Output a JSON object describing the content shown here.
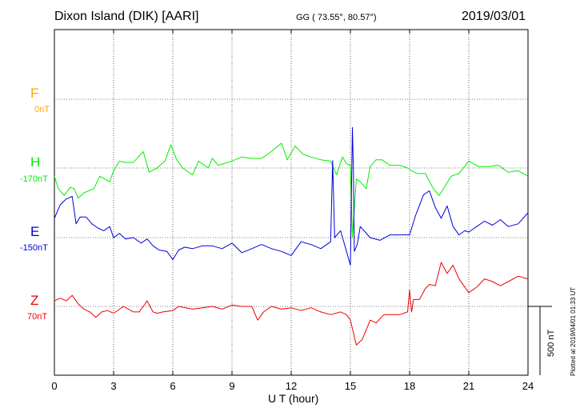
{
  "header": {
    "station": "Dixon Island (DIK)  [AARI]",
    "coords": "GG ( 73.55°,  80.57°)",
    "date": "2019/03/01"
  },
  "footer": {
    "xlabel": "U T (hour)",
    "plotted": "Plotted at 2019/04/01 01:33 UT"
  },
  "scale_bar": {
    "label": "500 nT",
    "value_nT": 500
  },
  "colors": {
    "F": "#ffa500",
    "H": "#00ee00",
    "E": "#0000dd",
    "Z": "#ee0000"
  },
  "channels": [
    {
      "key": "F",
      "name": "F",
      "base": "0nT",
      "color": "#ffa500"
    },
    {
      "key": "H",
      "name": "H",
      "base": "-170nT",
      "color": "#00ee00"
    },
    {
      "key": "E",
      "name": "E",
      "base": "-150nT",
      "color": "#0000dd"
    },
    {
      "key": "Z",
      "name": "Z",
      "base": "70nT",
      "color": "#ee0000"
    }
  ],
  "chart_data": {
    "type": "line",
    "title": "Dixon Island (DIK)  [AARI]",
    "xlabel": "U T (hour)",
    "xlim": [
      0,
      24
    ],
    "x_ticks": [
      0,
      3,
      6,
      9,
      12,
      15,
      18,
      21,
      24
    ],
    "ylabel": "",
    "units": "nT",
    "grid": true,
    "series": [
      {
        "name": "H",
        "color": "#00ee00",
        "baseline_nT": -170,
        "x": [
          0,
          0.2,
          0.5,
          0.8,
          1.0,
          1.2,
          1.5,
          2.0,
          2.3,
          2.8,
          3.0,
          3.3,
          3.6,
          4.0,
          4.5,
          4.8,
          5.2,
          5.6,
          5.9,
          6.2,
          6.5,
          7.0,
          7.3,
          7.8,
          8.0,
          8.3,
          9.0,
          9.5,
          10.0,
          10.5,
          11.0,
          11.5,
          11.8,
          12.2,
          12.6,
          13.0,
          13.5,
          14.0,
          14.3,
          14.6,
          14.8,
          15.0,
          15.1,
          15.2,
          15.3,
          15.5,
          15.8,
          16.0,
          16.3,
          16.6,
          17.0,
          17.5,
          17.9,
          18.1,
          18.4,
          18.8,
          19.2,
          19.5,
          19.8,
          20.1,
          20.5,
          21.0,
          21.5,
          22.0,
          22.5,
          23.0,
          23.5,
          24.0
        ],
        "y": [
          -60,
          -150,
          -200,
          -140,
          -150,
          -220,
          -180,
          -150,
          -60,
          -100,
          -20,
          50,
          40,
          40,
          120,
          -30,
          0,
          50,
          170,
          60,
          0,
          -50,
          50,
          0,
          70,
          20,
          50,
          80,
          70,
          70,
          120,
          180,
          60,
          160,
          100,
          80,
          60,
          50,
          -50,
          80,
          30,
          20,
          -500,
          -300,
          -80,
          -100,
          -150,
          10,
          60,
          60,
          20,
          20,
          0,
          -20,
          -40,
          -40,
          -150,
          -200,
          -130,
          -60,
          -40,
          50,
          10,
          10,
          20,
          -30,
          -20,
          -60
        ]
      },
      {
        "name": "E",
        "color": "#0000dd",
        "baseline_nT": -150,
        "x": [
          0,
          0.3,
          0.6,
          0.9,
          1.1,
          1.3,
          1.6,
          1.9,
          2.2,
          2.5,
          2.8,
          3.0,
          3.3,
          3.6,
          4.0,
          4.4,
          4.7,
          5.0,
          5.3,
          5.7,
          6.0,
          6.3,
          6.6,
          7.0,
          7.5,
          8.0,
          8.5,
          9.0,
          9.5,
          10.0,
          10.5,
          11.0,
          11.5,
          12.0,
          12.5,
          13.0,
          13.5,
          14.0,
          14.1,
          14.2,
          14.5,
          14.8,
          14.9,
          15.0,
          15.1,
          15.15,
          15.2,
          15.35,
          15.5,
          16.0,
          16.5,
          17.0,
          17.5,
          18.0,
          18.3,
          18.7,
          19.0,
          19.3,
          19.6,
          19.9,
          20.2,
          20.5,
          20.8,
          21.0,
          21.4,
          21.8,
          22.2,
          22.6,
          23.0,
          23.5,
          24.0
        ],
        "y": [
          140,
          240,
          280,
          300,
          100,
          150,
          150,
          100,
          70,
          50,
          80,
          0,
          30,
          -10,
          0,
          -40,
          -10,
          -60,
          -90,
          -100,
          -160,
          -90,
          -70,
          -80,
          -60,
          -60,
          -80,
          -40,
          -110,
          -80,
          -50,
          -80,
          -100,
          -130,
          -30,
          -50,
          -80,
          -30,
          560,
          0,
          50,
          -100,
          -150,
          -200,
          800,
          500,
          -100,
          -50,
          80,
          0,
          -20,
          20,
          20,
          20,
          160,
          310,
          340,
          220,
          140,
          230,
          80,
          20,
          50,
          40,
          80,
          120,
          90,
          130,
          80,
          100,
          180
        ]
      },
      {
        "name": "Z",
        "color": "#ee0000",
        "baseline_nT": 70,
        "x": [
          0,
          0.3,
          0.6,
          0.9,
          1.2,
          1.5,
          1.8,
          2.1,
          2.4,
          2.7,
          3.0,
          3.5,
          4.0,
          4.3,
          4.7,
          5.0,
          5.2,
          5.5,
          6.0,
          6.3,
          7.0,
          7.5,
          8.0,
          8.5,
          9.0,
          9.5,
          10.0,
          10.3,
          10.6,
          11.0,
          11.5,
          12.0,
          12.5,
          13.0,
          13.5,
          14.0,
          14.5,
          14.8,
          15.0,
          15.3,
          15.6,
          16.0,
          16.3,
          16.7,
          17.0,
          17.5,
          17.9,
          18.0,
          18.1,
          18.2,
          18.5,
          18.8,
          19.0,
          19.3,
          19.6,
          19.9,
          20.2,
          20.5,
          21.0,
          21.4,
          21.8,
          22.2,
          22.6,
          23.0,
          23.5,
          24.0
        ],
        "y": [
          40,
          60,
          40,
          80,
          20,
          -20,
          -40,
          -80,
          -40,
          -30,
          -50,
          0,
          -40,
          -40,
          40,
          -40,
          -50,
          -40,
          -30,
          0,
          -20,
          -10,
          0,
          -20,
          10,
          0,
          0,
          -100,
          -40,
          0,
          -20,
          -10,
          -30,
          -10,
          -40,
          -60,
          -40,
          -60,
          -100,
          -280,
          -240,
          -100,
          -120,
          -60,
          -60,
          -60,
          -40,
          120,
          -40,
          50,
          50,
          130,
          160,
          150,
          320,
          240,
          300,
          200,
          100,
          140,
          200,
          180,
          150,
          180,
          220,
          200
        ]
      }
    ]
  }
}
